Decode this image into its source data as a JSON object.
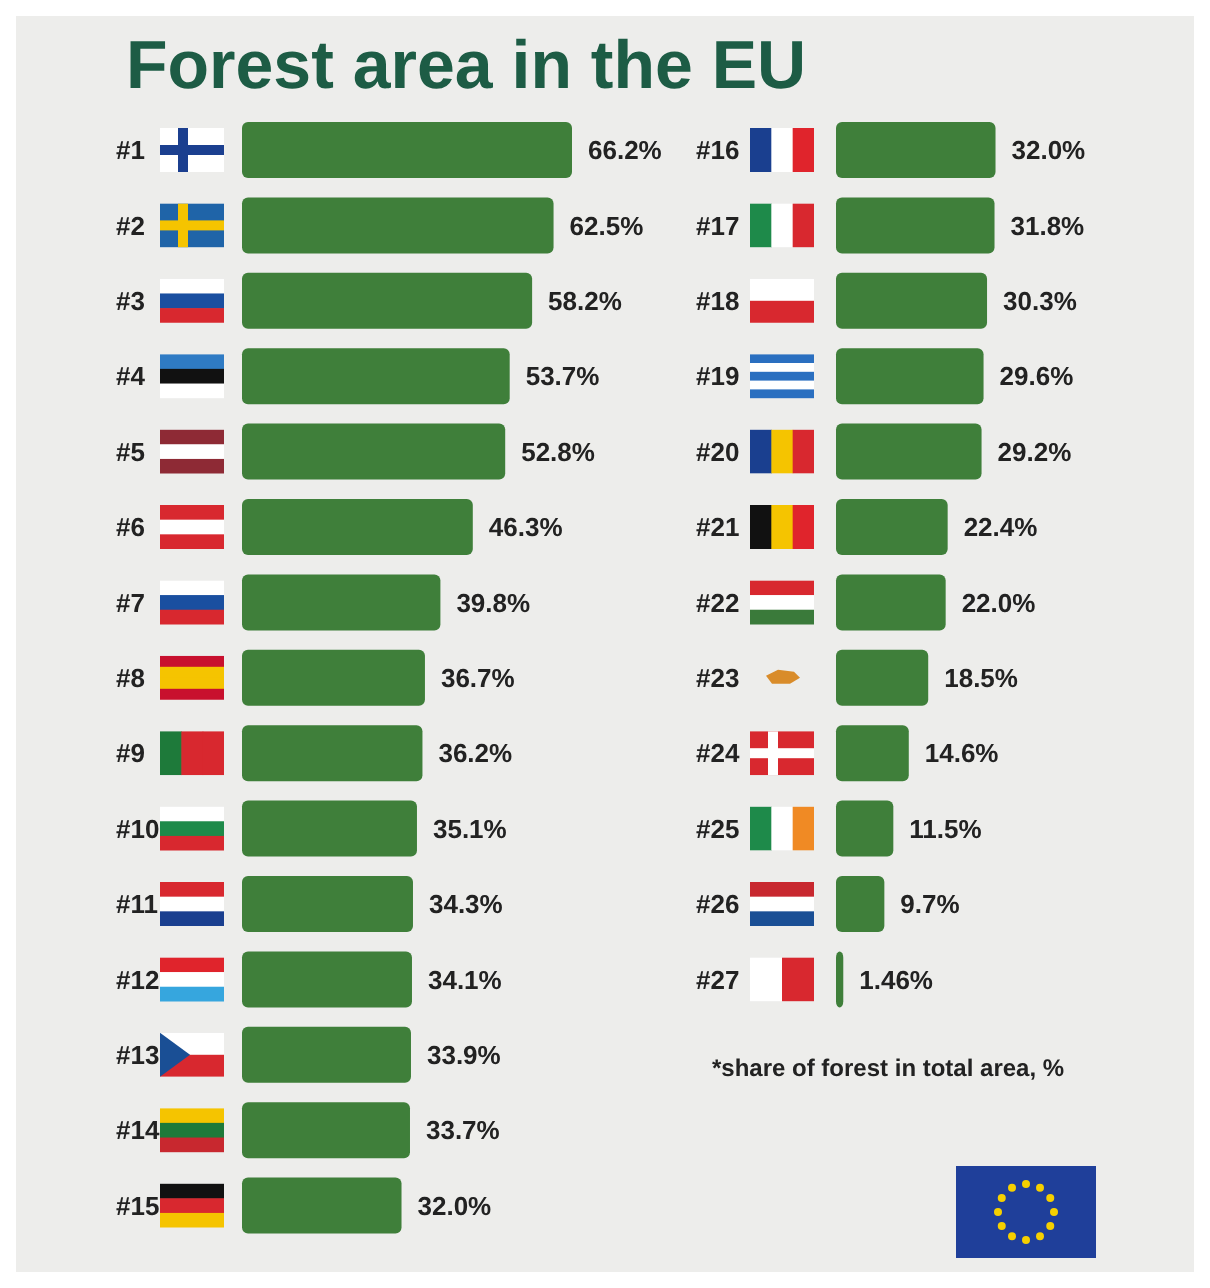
{
  "chart_data": [
    {
      "type": "bar",
      "title": "Forest area in the EU",
      "orientation": "horizontal",
      "color": "#3f7f3a",
      "data_labels": true,
      "categories": [
        "#1",
        "#2",
        "#3",
        "#4",
        "#5",
        "#6",
        "#7",
        "#8",
        "#9",
        "#10",
        "#11",
        "#12",
        "#13",
        "#14",
        "#15"
      ],
      "values": [
        66.2,
        62.5,
        58.2,
        53.7,
        52.8,
        46.3,
        39.8,
        36.7,
        36.2,
        35.1,
        34.3,
        34.1,
        33.9,
        33.7,
        32.0
      ],
      "value_labels": [
        "66.2%",
        "62.5%",
        "58.2%",
        "53.7%",
        "52.8%",
        "46.3%",
        "39.8%",
        "36.7%",
        "36.2%",
        "35.1%",
        "34.3%",
        "34.1%",
        "33.9%",
        "33.7%",
        "32.0%"
      ]
    },
    {
      "type": "bar",
      "orientation": "horizontal",
      "color": "#3f7f3a",
      "data_labels": true,
      "categories": [
        "#16",
        "#17",
        "#18",
        "#19",
        "#20",
        "#21",
        "#22",
        "#23",
        "#24",
        "#25",
        "#26",
        "#27"
      ],
      "values": [
        32.0,
        31.8,
        30.3,
        29.6,
        29.2,
        22.4,
        22.0,
        18.5,
        14.6,
        11.5,
        9.7,
        1.46
      ],
      "value_labels": [
        "32.0%",
        "31.8%",
        "30.3%",
        "29.6%",
        "29.2%",
        "22.4%",
        "22.0%",
        "18.5%",
        "14.6%",
        "11.5%",
        "9.7%",
        "1.46%"
      ],
      "annotations": [
        "*share of forest in total area, %"
      ]
    }
  ]
}
